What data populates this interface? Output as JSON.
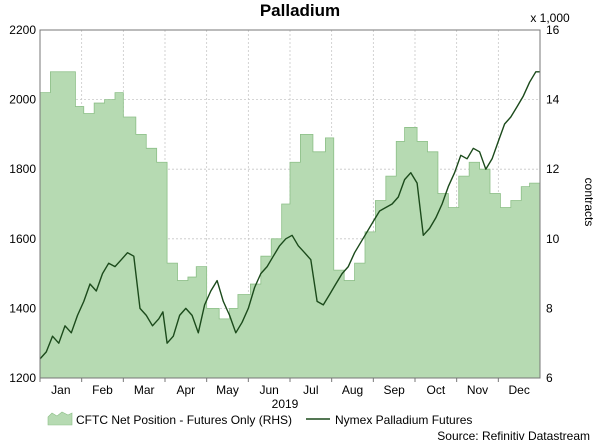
{
  "chart_data": {
    "type": "line",
    "title": "Palladium",
    "xlabel": "2019",
    "y_left": {
      "label": "",
      "lim": [
        1200,
        2200
      ],
      "ticks": [
        1200,
        1400,
        1600,
        1800,
        2000,
        2200
      ]
    },
    "y_right": {
      "label": "contracts",
      "multiplier": "x 1,000",
      "lim": [
        6,
        16
      ],
      "ticks": [
        6,
        8,
        10,
        12,
        14,
        16
      ]
    },
    "months": [
      "Jan",
      "Feb",
      "Mar",
      "Apr",
      "May",
      "Jun",
      "Jul",
      "Aug",
      "Sep",
      "Oct",
      "Nov",
      "Dec"
    ],
    "grid": true,
    "legend_placement": "bottom",
    "colors": {
      "area_fill": "#b6dab2",
      "area_edge": "#8cbf87",
      "line": "#1b4a1b"
    },
    "series": [
      {
        "name": "CFTC Net Position - Futures Only (RHS)",
        "type": "area",
        "axis": "right",
        "x": [
          0.0,
          0.05,
          0.25,
          0.55,
          0.85,
          1.05,
          1.3,
          1.55,
          1.8,
          2.0,
          2.3,
          2.55,
          2.8,
          3.05,
          3.3,
          3.55,
          3.75,
          4.0,
          4.3,
          4.55,
          4.75,
          5.05,
          5.3,
          5.55,
          5.8,
          6.0,
          6.25,
          6.55,
          6.85,
          7.05,
          7.3,
          7.55,
          7.8,
          8.05,
          8.3,
          8.55,
          8.75,
          9.05,
          9.3,
          9.55,
          9.8,
          10.05,
          10.3,
          10.55,
          10.8,
          11.05,
          11.3,
          11.55,
          11.75,
          12.0
        ],
        "y": [
          14.2,
          14.2,
          14.8,
          14.8,
          13.8,
          13.6,
          13.9,
          14.0,
          14.2,
          13.5,
          13.0,
          12.6,
          12.2,
          9.3,
          8.8,
          8.9,
          9.2,
          8.0,
          7.7,
          8.0,
          8.4,
          8.7,
          9.5,
          10.0,
          11.0,
          12.2,
          13.0,
          12.5,
          12.9,
          9.1,
          8.8,
          9.3,
          10.2,
          11.1,
          11.8,
          12.8,
          13.2,
          12.8,
          12.5,
          11.3,
          10.9,
          11.8,
          12.2,
          12.0,
          11.3,
          10.9,
          11.1,
          11.5,
          11.6,
          12.0
        ]
      },
      {
        "name": "Nymex Palladium Futures",
        "type": "line",
        "axis": "left",
        "x": [
          0.0,
          0.15,
          0.3,
          0.45,
          0.6,
          0.75,
          0.9,
          1.05,
          1.2,
          1.35,
          1.5,
          1.65,
          1.8,
          1.95,
          2.1,
          2.25,
          2.4,
          2.55,
          2.7,
          2.85,
          2.95,
          3.05,
          3.2,
          3.35,
          3.5,
          3.65,
          3.8,
          3.95,
          4.1,
          4.25,
          4.4,
          4.55,
          4.7,
          4.85,
          5.0,
          5.15,
          5.3,
          5.45,
          5.6,
          5.75,
          5.9,
          6.05,
          6.2,
          6.35,
          6.5,
          6.65,
          6.8,
          6.95,
          7.1,
          7.25,
          7.4,
          7.55,
          7.7,
          7.85,
          8.0,
          8.15,
          8.3,
          8.45,
          8.6,
          8.75,
          8.9,
          9.05,
          9.2,
          9.35,
          9.5,
          9.65,
          9.8,
          9.95,
          10.1,
          10.25,
          10.4,
          10.55,
          10.7,
          10.85,
          11.0,
          11.15,
          11.3,
          11.45,
          11.6,
          11.75,
          11.9,
          12.0
        ],
        "y": [
          1255,
          1275,
          1320,
          1300,
          1350,
          1330,
          1380,
          1420,
          1470,
          1450,
          1500,
          1530,
          1520,
          1540,
          1560,
          1550,
          1400,
          1380,
          1350,
          1370,
          1390,
          1300,
          1320,
          1380,
          1400,
          1380,
          1330,
          1410,
          1450,
          1480,
          1420,
          1380,
          1330,
          1360,
          1400,
          1460,
          1500,
          1520,
          1550,
          1580,
          1600,
          1610,
          1580,
          1560,
          1540,
          1420,
          1410,
          1440,
          1470,
          1500,
          1520,
          1560,
          1590,
          1620,
          1650,
          1680,
          1690,
          1700,
          1720,
          1770,
          1790,
          1760,
          1610,
          1630,
          1660,
          1700,
          1750,
          1790,
          1840,
          1830,
          1860,
          1850,
          1800,
          1830,
          1880,
          1930,
          1950,
          1980,
          2010,
          2050,
          2080,
          2080
        ]
      }
    ]
  },
  "source": "Source: Refinitiv Datastream"
}
